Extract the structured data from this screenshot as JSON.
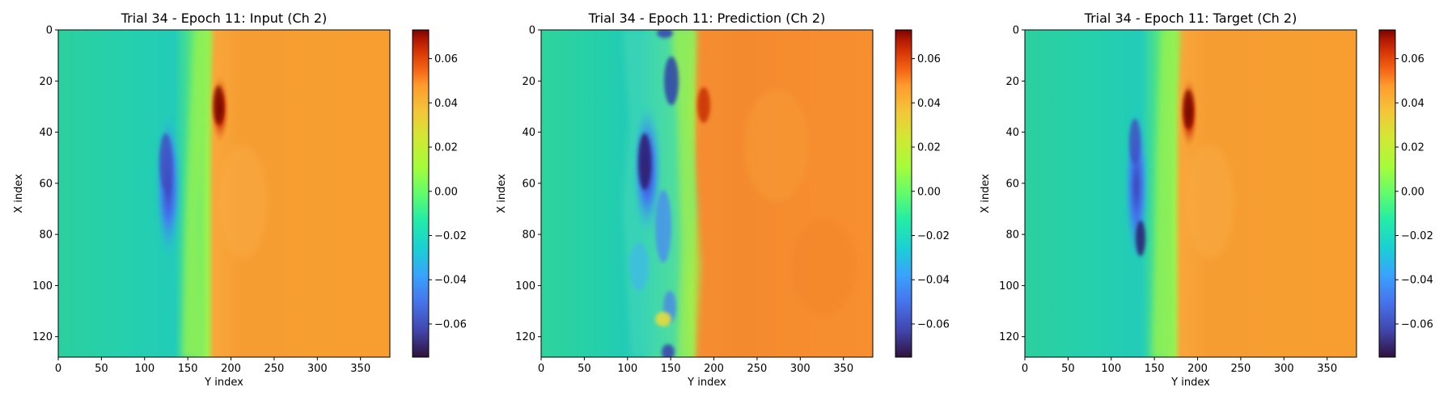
{
  "chart_data": [
    {
      "type": "heatmap",
      "title": "Trial 34 - Epoch 11: Input (Ch 2)",
      "xlabel": "Y index",
      "ylabel": "X index",
      "xlim": [
        0,
        384
      ],
      "ylim": [
        128,
        0
      ],
      "xticks": [
        "0",
        "50",
        "100",
        "150",
        "200",
        "250",
        "300",
        "350"
      ],
      "yticks": [
        "0",
        "20",
        "40",
        "60",
        "80",
        "100",
        "120"
      ],
      "colormap": "turbo",
      "value_range": [
        -0.075,
        0.073
      ],
      "colorbar_ticks": [
        "0.06",
        "0.04",
        "0.02",
        "0.00",
        "−0.02",
        "−0.04",
        "−0.06"
      ]
    },
    {
      "type": "heatmap",
      "title": "Trial 34 - Epoch 11: Prediction (Ch 2)",
      "xlabel": "Y index",
      "ylabel": "X index",
      "xlim": [
        0,
        384
      ],
      "ylim": [
        128,
        0
      ],
      "xticks": [
        "0",
        "50",
        "100",
        "150",
        "200",
        "250",
        "300",
        "350"
      ],
      "yticks": [
        "0",
        "20",
        "40",
        "60",
        "80",
        "100",
        "120"
      ],
      "colormap": "turbo",
      "value_range": [
        -0.075,
        0.073
      ],
      "colorbar_ticks": [
        "0.06",
        "0.04",
        "0.02",
        "0.00",
        "−0.02",
        "−0.04",
        "−0.06"
      ]
    },
    {
      "type": "heatmap",
      "title": "Trial 34 - Epoch 11: Target (Ch 2)",
      "xlabel": "Y index",
      "ylabel": "X index",
      "xlim": [
        0,
        384
      ],
      "ylim": [
        128,
        0
      ],
      "xticks": [
        "0",
        "50",
        "100",
        "150",
        "200",
        "250",
        "300",
        "350"
      ],
      "yticks": [
        "0",
        "20",
        "40",
        "60",
        "80",
        "100",
        "120"
      ],
      "colormap": "turbo",
      "value_range": [
        -0.075,
        0.073
      ],
      "colorbar_ticks": [
        "0.06",
        "0.04",
        "0.02",
        "0.00",
        "−0.02",
        "−0.04",
        "−0.06"
      ]
    }
  ],
  "colors": {
    "dark_red": "#7a0403",
    "red": "#d23105",
    "orange": "#fb9b2a",
    "yellow": "#d4e735",
    "green": "#64fd6a",
    "teal": "#1ae4b6",
    "cyan": "#28bceb",
    "blue": "#4686fb",
    "indigo": "#30123b"
  }
}
